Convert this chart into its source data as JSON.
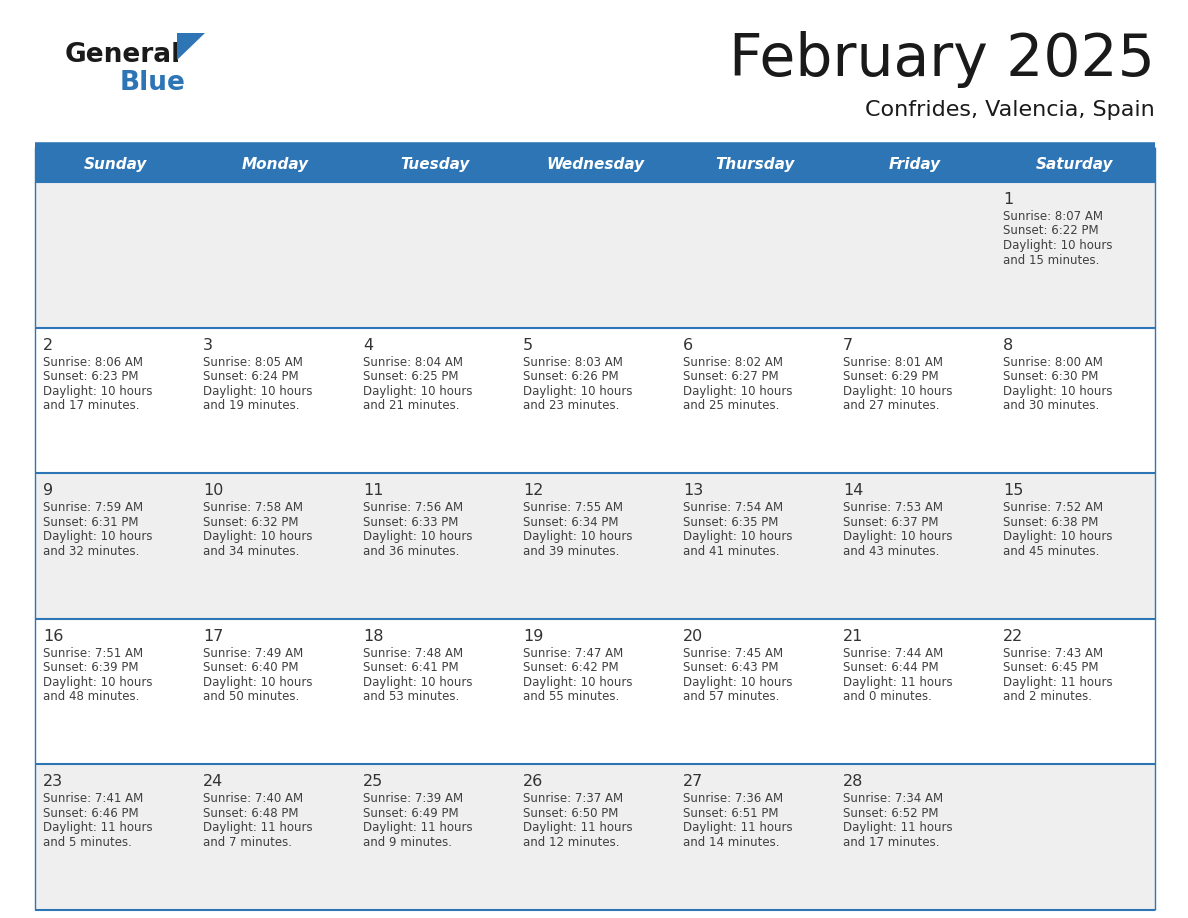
{
  "title": "February 2025",
  "subtitle": "Confrides, Valencia, Spain",
  "days_of_week": [
    "Sunday",
    "Monday",
    "Tuesday",
    "Wednesday",
    "Thursday",
    "Friday",
    "Saturday"
  ],
  "header_bg": "#2E75B6",
  "header_text": "#FFFFFF",
  "cell_bg_white": "#FFFFFF",
  "cell_bg_gray": "#EFEFEF",
  "day_num_color": "#333333",
  "text_color": "#404040",
  "line_color": "#2E75B6",
  "title_color": "#1A1A1A",
  "logo_general_color": "#1A1A1A",
  "logo_blue_color": "#2E75B6",
  "weeks": [
    [
      null,
      null,
      null,
      null,
      null,
      null,
      1
    ],
    [
      2,
      3,
      4,
      5,
      6,
      7,
      8
    ],
    [
      9,
      10,
      11,
      12,
      13,
      14,
      15
    ],
    [
      16,
      17,
      18,
      19,
      20,
      21,
      22
    ],
    [
      23,
      24,
      25,
      26,
      27,
      28,
      null
    ]
  ],
  "row_bg": [
    "#EFEFEF",
    "#FFFFFF",
    "#EFEFEF",
    "#FFFFFF",
    "#EFEFEF"
  ],
  "day_data": {
    "1": {
      "sunrise": "8:07 AM",
      "sunset": "6:22 PM",
      "daylight_h": "10 hours",
      "daylight_m": "and 15 minutes."
    },
    "2": {
      "sunrise": "8:06 AM",
      "sunset": "6:23 PM",
      "daylight_h": "10 hours",
      "daylight_m": "and 17 minutes."
    },
    "3": {
      "sunrise": "8:05 AM",
      "sunset": "6:24 PM",
      "daylight_h": "10 hours",
      "daylight_m": "and 19 minutes."
    },
    "4": {
      "sunrise": "8:04 AM",
      "sunset": "6:25 PM",
      "daylight_h": "10 hours",
      "daylight_m": "and 21 minutes."
    },
    "5": {
      "sunrise": "8:03 AM",
      "sunset": "6:26 PM",
      "daylight_h": "10 hours",
      "daylight_m": "and 23 minutes."
    },
    "6": {
      "sunrise": "8:02 AM",
      "sunset": "6:27 PM",
      "daylight_h": "10 hours",
      "daylight_m": "and 25 minutes."
    },
    "7": {
      "sunrise": "8:01 AM",
      "sunset": "6:29 PM",
      "daylight_h": "10 hours",
      "daylight_m": "and 27 minutes."
    },
    "8": {
      "sunrise": "8:00 AM",
      "sunset": "6:30 PM",
      "daylight_h": "10 hours",
      "daylight_m": "and 30 minutes."
    },
    "9": {
      "sunrise": "7:59 AM",
      "sunset": "6:31 PM",
      "daylight_h": "10 hours",
      "daylight_m": "and 32 minutes."
    },
    "10": {
      "sunrise": "7:58 AM",
      "sunset": "6:32 PM",
      "daylight_h": "10 hours",
      "daylight_m": "and 34 minutes."
    },
    "11": {
      "sunrise": "7:56 AM",
      "sunset": "6:33 PM",
      "daylight_h": "10 hours",
      "daylight_m": "and 36 minutes."
    },
    "12": {
      "sunrise": "7:55 AM",
      "sunset": "6:34 PM",
      "daylight_h": "10 hours",
      "daylight_m": "and 39 minutes."
    },
    "13": {
      "sunrise": "7:54 AM",
      "sunset": "6:35 PM",
      "daylight_h": "10 hours",
      "daylight_m": "and 41 minutes."
    },
    "14": {
      "sunrise": "7:53 AM",
      "sunset": "6:37 PM",
      "daylight_h": "10 hours",
      "daylight_m": "and 43 minutes."
    },
    "15": {
      "sunrise": "7:52 AM",
      "sunset": "6:38 PM",
      "daylight_h": "10 hours",
      "daylight_m": "and 45 minutes."
    },
    "16": {
      "sunrise": "7:51 AM",
      "sunset": "6:39 PM",
      "daylight_h": "10 hours",
      "daylight_m": "and 48 minutes."
    },
    "17": {
      "sunrise": "7:49 AM",
      "sunset": "6:40 PM",
      "daylight_h": "10 hours",
      "daylight_m": "and 50 minutes."
    },
    "18": {
      "sunrise": "7:48 AM",
      "sunset": "6:41 PM",
      "daylight_h": "10 hours",
      "daylight_m": "and 53 minutes."
    },
    "19": {
      "sunrise": "7:47 AM",
      "sunset": "6:42 PM",
      "daylight_h": "10 hours",
      "daylight_m": "and 55 minutes."
    },
    "20": {
      "sunrise": "7:45 AM",
      "sunset": "6:43 PM",
      "daylight_h": "10 hours",
      "daylight_m": "and 57 minutes."
    },
    "21": {
      "sunrise": "7:44 AM",
      "sunset": "6:44 PM",
      "daylight_h": "11 hours",
      "daylight_m": "and 0 minutes."
    },
    "22": {
      "sunrise": "7:43 AM",
      "sunset": "6:45 PM",
      "daylight_h": "11 hours",
      "daylight_m": "and 2 minutes."
    },
    "23": {
      "sunrise": "7:41 AM",
      "sunset": "6:46 PM",
      "daylight_h": "11 hours",
      "daylight_m": "and 5 minutes."
    },
    "24": {
      "sunrise": "7:40 AM",
      "sunset": "6:48 PM",
      "daylight_h": "11 hours",
      "daylight_m": "and 7 minutes."
    },
    "25": {
      "sunrise": "7:39 AM",
      "sunset": "6:49 PM",
      "daylight_h": "11 hours",
      "daylight_m": "and 9 minutes."
    },
    "26": {
      "sunrise": "7:37 AM",
      "sunset": "6:50 PM",
      "daylight_h": "11 hours",
      "daylight_m": "and 12 minutes."
    },
    "27": {
      "sunrise": "7:36 AM",
      "sunset": "6:51 PM",
      "daylight_h": "11 hours",
      "daylight_m": "and 14 minutes."
    },
    "28": {
      "sunrise": "7:34 AM",
      "sunset": "6:52 PM",
      "daylight_h": "11 hours",
      "daylight_m": "and 17 minutes."
    }
  }
}
